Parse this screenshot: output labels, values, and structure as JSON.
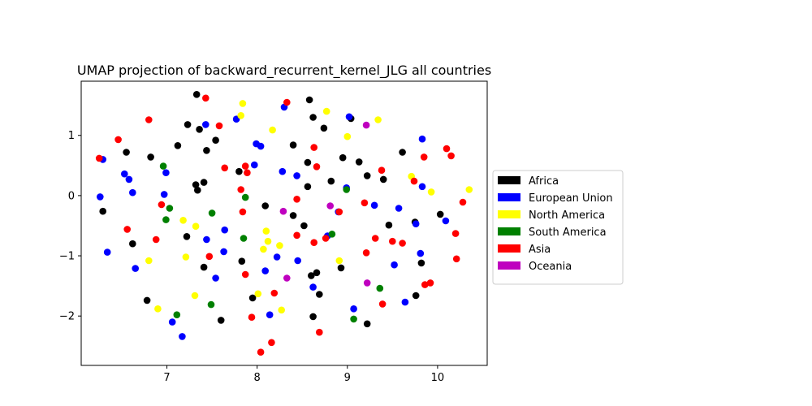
{
  "chart_data": {
    "type": "scatter",
    "title": "UMAP projection of backward_recurrent_kernel_JLG all countries",
    "xlabel": "",
    "ylabel": "",
    "xlim": [
      6.05,
      10.55
    ],
    "ylim": [
      -2.82,
      1.9
    ],
    "x_ticks": [
      7,
      8,
      9,
      10
    ],
    "y_ticks": [
      -2,
      -1,
      0,
      1
    ],
    "x_tick_labels": [
      "7",
      "8",
      "9",
      "10"
    ],
    "y_tick_labels": [
      "−2",
      "−1",
      "0",
      "1"
    ],
    "grid": false,
    "legend_position": "right",
    "colors": {
      "Africa": "#000000",
      "European Union": "#0000ff",
      "North America": "#ffff00",
      "South America": "#008000",
      "Asia": "#ff0000",
      "Oceania": "#bf00bf"
    },
    "series": [
      {
        "name": "Africa",
        "points": [
          [
            6.29,
            -0.26
          ],
          [
            6.55,
            0.72
          ],
          [
            6.62,
            -0.8
          ],
          [
            6.78,
            -1.74
          ],
          [
            6.82,
            0.64
          ],
          [
            7.12,
            0.83
          ],
          [
            7.22,
            -0.68
          ],
          [
            7.23,
            1.18
          ],
          [
            7.32,
            0.18
          ],
          [
            7.33,
            1.68
          ],
          [
            7.34,
            0.09
          ],
          [
            7.36,
            1.1
          ],
          [
            7.41,
            0.22
          ],
          [
            7.41,
            -1.19
          ],
          [
            7.44,
            0.75
          ],
          [
            7.54,
            0.92
          ],
          [
            7.6,
            -2.07
          ],
          [
            7.8,
            0.4
          ],
          [
            7.83,
            -1.09
          ],
          [
            7.95,
            -1.7
          ],
          [
            8.09,
            -0.17
          ],
          [
            8.4,
            0.84
          ],
          [
            8.4,
            -0.33
          ],
          [
            8.52,
            -0.5
          ],
          [
            8.56,
            0.55
          ],
          [
            8.56,
            0.15
          ],
          [
            8.58,
            1.59
          ],
          [
            8.6,
            -1.33
          ],
          [
            8.62,
            -2.01
          ],
          [
            8.62,
            1.3
          ],
          [
            8.66,
            -1.28
          ],
          [
            8.69,
            -1.64
          ],
          [
            8.74,
            1.12
          ],
          [
            8.82,
            0.24
          ],
          [
            8.93,
            -1.2
          ],
          [
            8.95,
            0.63
          ],
          [
            9.04,
            1.28
          ],
          [
            9.13,
            0.56
          ],
          [
            9.22,
            0.33
          ],
          [
            9.22,
            -2.13
          ],
          [
            9.4,
            0.27
          ],
          [
            9.46,
            -0.49
          ],
          [
            9.61,
            0.72
          ],
          [
            9.75,
            -0.44
          ],
          [
            9.76,
            -1.66
          ],
          [
            9.82,
            -1.12
          ],
          [
            10.03,
            -0.31
          ]
        ]
      },
      {
        "name": "European Union",
        "points": [
          [
            6.26,
            -0.02
          ],
          [
            6.29,
            0.6
          ],
          [
            6.34,
            -0.94
          ],
          [
            6.53,
            0.36
          ],
          [
            6.58,
            0.27
          ],
          [
            6.62,
            0.05
          ],
          [
            6.65,
            -1.21
          ],
          [
            6.97,
            0.02
          ],
          [
            6.99,
            0.38
          ],
          [
            7.06,
            -2.1
          ],
          [
            7.17,
            -2.34
          ],
          [
            7.43,
            1.18
          ],
          [
            7.44,
            -0.73
          ],
          [
            7.54,
            -1.37
          ],
          [
            7.63,
            -0.93
          ],
          [
            7.64,
            -0.57
          ],
          [
            7.77,
            1.27
          ],
          [
            7.97,
            0.51
          ],
          [
            7.99,
            0.86
          ],
          [
            8.04,
            0.82
          ],
          [
            8.09,
            -1.25
          ],
          [
            8.14,
            -1.98
          ],
          [
            8.22,
            -1.02
          ],
          [
            8.28,
            0.4
          ],
          [
            8.3,
            1.47
          ],
          [
            8.44,
            0.33
          ],
          [
            8.45,
            -1.08
          ],
          [
            8.62,
            -1.52
          ],
          [
            8.78,
            -0.67
          ],
          [
            8.9,
            -0.27
          ],
          [
            8.99,
            0.13
          ],
          [
            9.02,
            1.31
          ],
          [
            9.07,
            -1.88
          ],
          [
            9.3,
            -0.16
          ],
          [
            9.52,
            -1.15
          ],
          [
            9.57,
            -0.21
          ],
          [
            9.64,
            -1.77
          ],
          [
            9.76,
            -0.47
          ],
          [
            9.81,
            -0.96
          ],
          [
            9.83,
            0.94
          ],
          [
            9.83,
            0.15
          ],
          [
            10.09,
            -0.42
          ]
        ]
      },
      {
        "name": "North America",
        "points": [
          [
            6.8,
            -1.08
          ],
          [
            6.9,
            -1.88
          ],
          [
            7.18,
            -0.41
          ],
          [
            7.21,
            -1.02
          ],
          [
            7.31,
            -1.66
          ],
          [
            7.32,
            -0.51
          ],
          [
            7.82,
            1.33
          ],
          [
            7.84,
            1.53
          ],
          [
            8.01,
            -1.63
          ],
          [
            8.07,
            -0.89
          ],
          [
            8.1,
            -0.59
          ],
          [
            8.12,
            -0.76
          ],
          [
            8.17,
            1.09
          ],
          [
            8.25,
            -0.83
          ],
          [
            8.27,
            -1.9
          ],
          [
            8.77,
            1.4
          ],
          [
            8.91,
            -1.08
          ],
          [
            9.0,
            0.98
          ],
          [
            9.34,
            1.26
          ],
          [
            9.71,
            0.32
          ],
          [
            9.93,
            0.06
          ],
          [
            10.35,
            0.1
          ]
        ]
      },
      {
        "name": "South America",
        "points": [
          [
            6.96,
            0.49
          ],
          [
            6.99,
            -0.4
          ],
          [
            7.03,
            -0.21
          ],
          [
            7.11,
            -1.98
          ],
          [
            7.49,
            -1.81
          ],
          [
            7.5,
            -0.29
          ],
          [
            7.85,
            -0.71
          ],
          [
            7.87,
            -0.03
          ],
          [
            8.83,
            -0.64
          ],
          [
            8.99,
            0.1
          ],
          [
            9.07,
            -2.05
          ],
          [
            9.36,
            -1.54
          ]
        ]
      },
      {
        "name": "Asia",
        "points": [
          [
            6.25,
            0.62
          ],
          [
            6.46,
            0.93
          ],
          [
            6.56,
            -0.56
          ],
          [
            6.8,
            1.26
          ],
          [
            6.88,
            -0.73
          ],
          [
            6.94,
            -0.15
          ],
          [
            7.43,
            1.62
          ],
          [
            7.47,
            -1.01
          ],
          [
            7.58,
            1.16
          ],
          [
            7.64,
            0.46
          ],
          [
            7.82,
            0.1
          ],
          [
            7.84,
            -0.27
          ],
          [
            7.87,
            0.49
          ],
          [
            7.87,
            -1.31
          ],
          [
            7.89,
            0.38
          ],
          [
            7.94,
            -2.02
          ],
          [
            8.04,
            -2.6
          ],
          [
            8.16,
            -2.44
          ],
          [
            8.19,
            -1.62
          ],
          [
            8.33,
            1.55
          ],
          [
            8.44,
            -0.06
          ],
          [
            8.44,
            -0.66
          ],
          [
            8.63,
            0.8
          ],
          [
            8.63,
            -0.78
          ],
          [
            8.66,
            0.48
          ],
          [
            8.69,
            -2.27
          ],
          [
            8.76,
            -0.71
          ],
          [
            8.91,
            -0.27
          ],
          [
            9.19,
            -0.12
          ],
          [
            9.21,
            -0.95
          ],
          [
            9.31,
            -0.71
          ],
          [
            9.38,
            0.42
          ],
          [
            9.39,
            -1.8
          ],
          [
            9.5,
            -0.76
          ],
          [
            9.61,
            -0.79
          ],
          [
            9.74,
            0.24
          ],
          [
            9.85,
            0.64
          ],
          [
            9.86,
            -1.48
          ],
          [
            9.92,
            -1.45
          ],
          [
            10.1,
            0.78
          ],
          [
            10.15,
            0.66
          ],
          [
            10.2,
            -0.63
          ],
          [
            10.21,
            -1.05
          ],
          [
            10.28,
            -0.11
          ]
        ]
      },
      {
        "name": "Oceania",
        "points": [
          [
            8.29,
            -0.26
          ],
          [
            8.33,
            -1.37
          ],
          [
            8.81,
            -0.17
          ],
          [
            9.21,
            1.17
          ],
          [
            9.22,
            -1.45
          ]
        ]
      }
    ]
  }
}
